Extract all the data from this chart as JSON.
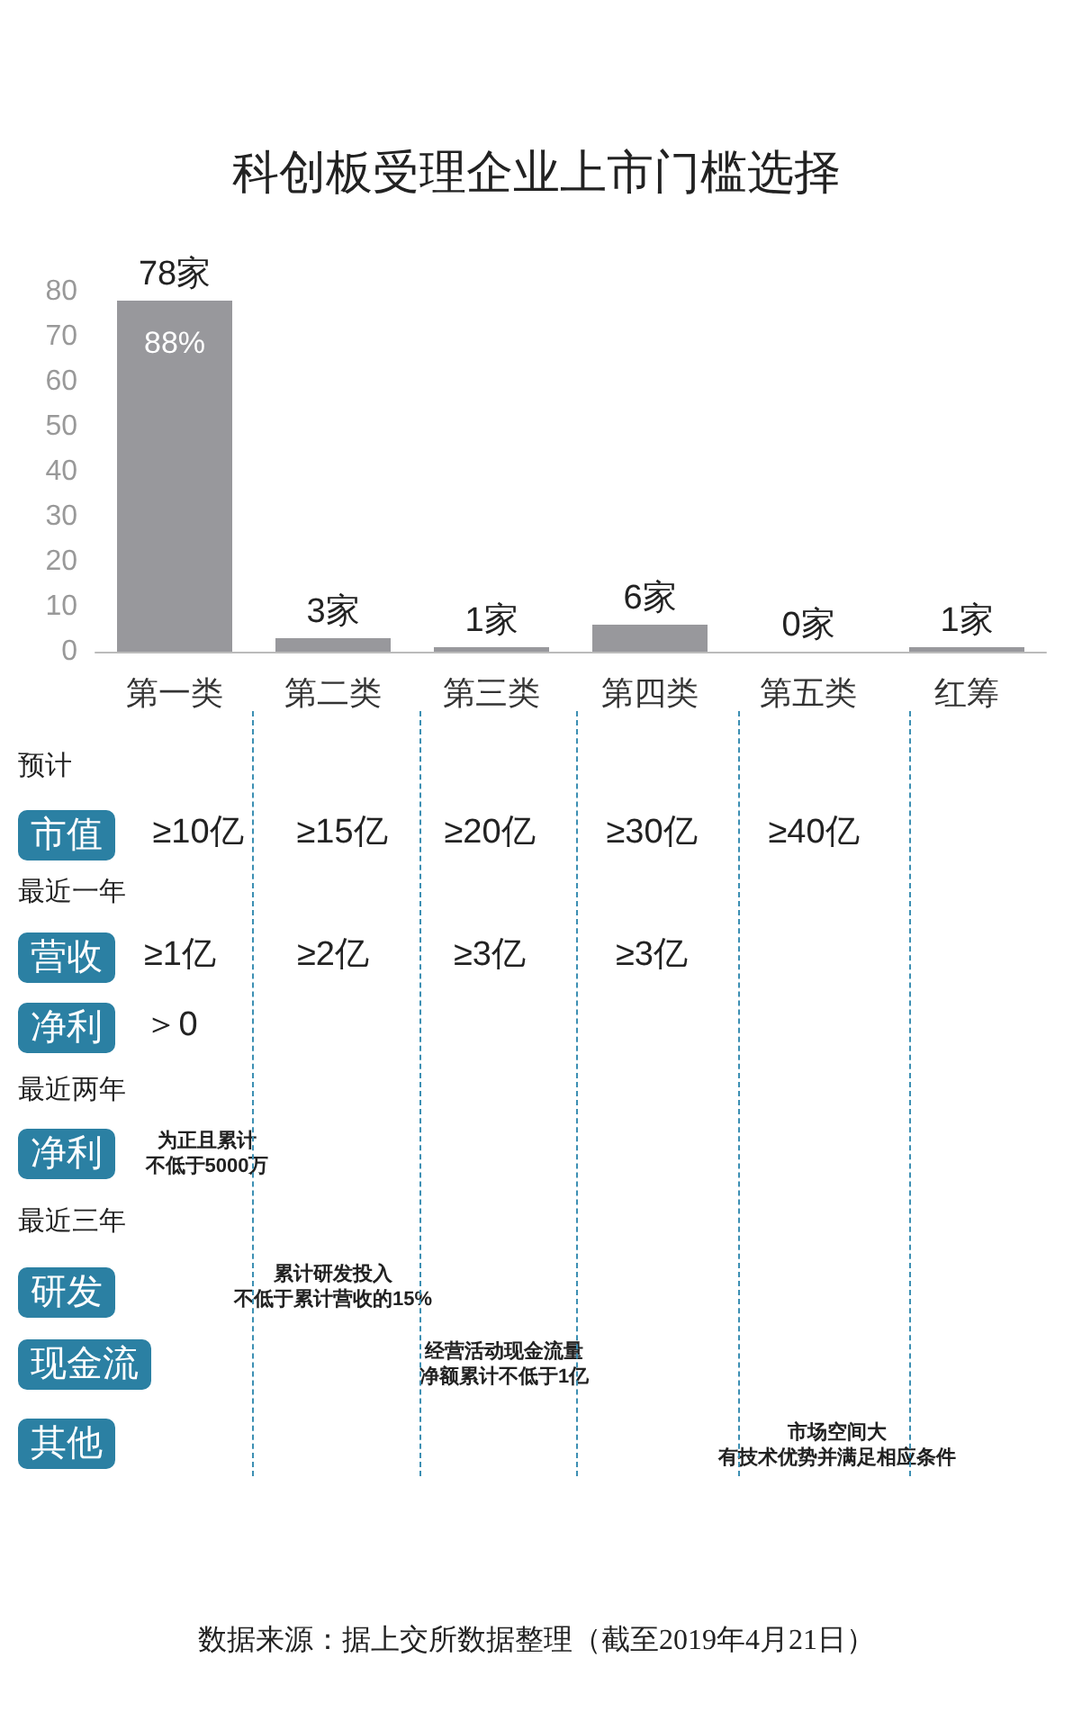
{
  "chart_data": {
    "type": "bar",
    "title": "科创板受理企业上市门槛选择",
    "categories": [
      "第一类",
      "第二类",
      "第三类",
      "第四类",
      "第五类",
      "红筹"
    ],
    "values": [
      78,
      3,
      1,
      6,
      0,
      1
    ],
    "value_labels": [
      "78家",
      "3家",
      "1家",
      "6家",
      "0家",
      "1家"
    ],
    "color": "#98989c",
    "ylim": [
      0,
      80
    ],
    "yticks": [
      0,
      10,
      20,
      30,
      40,
      50,
      60,
      70,
      80
    ],
    "grid": false,
    "annotations": [
      "88%",
      "预计",
      "市值",
      "≥10亿",
      "≥15亿",
      "≥20亿",
      "≥30亿",
      "≥40亿",
      "最近一年",
      "营收",
      "≥1亿",
      "≥2亿",
      "≥3亿",
      "≥3亿",
      "净利",
      "＞0",
      "最近两年",
      "净利",
      "为正且累计",
      "不低于5000万",
      "最近三年",
      "研发",
      "累计研发投入",
      "不低于累计营收的15%",
      "现金流",
      "经营活动现金流量",
      "净额累计不低于1亿",
      "其他",
      "市场空间大",
      "有技术优势并满足相应条件",
      "数据来源：据上交所数据整理（截至2019年4月21日）"
    ]
  }
}
